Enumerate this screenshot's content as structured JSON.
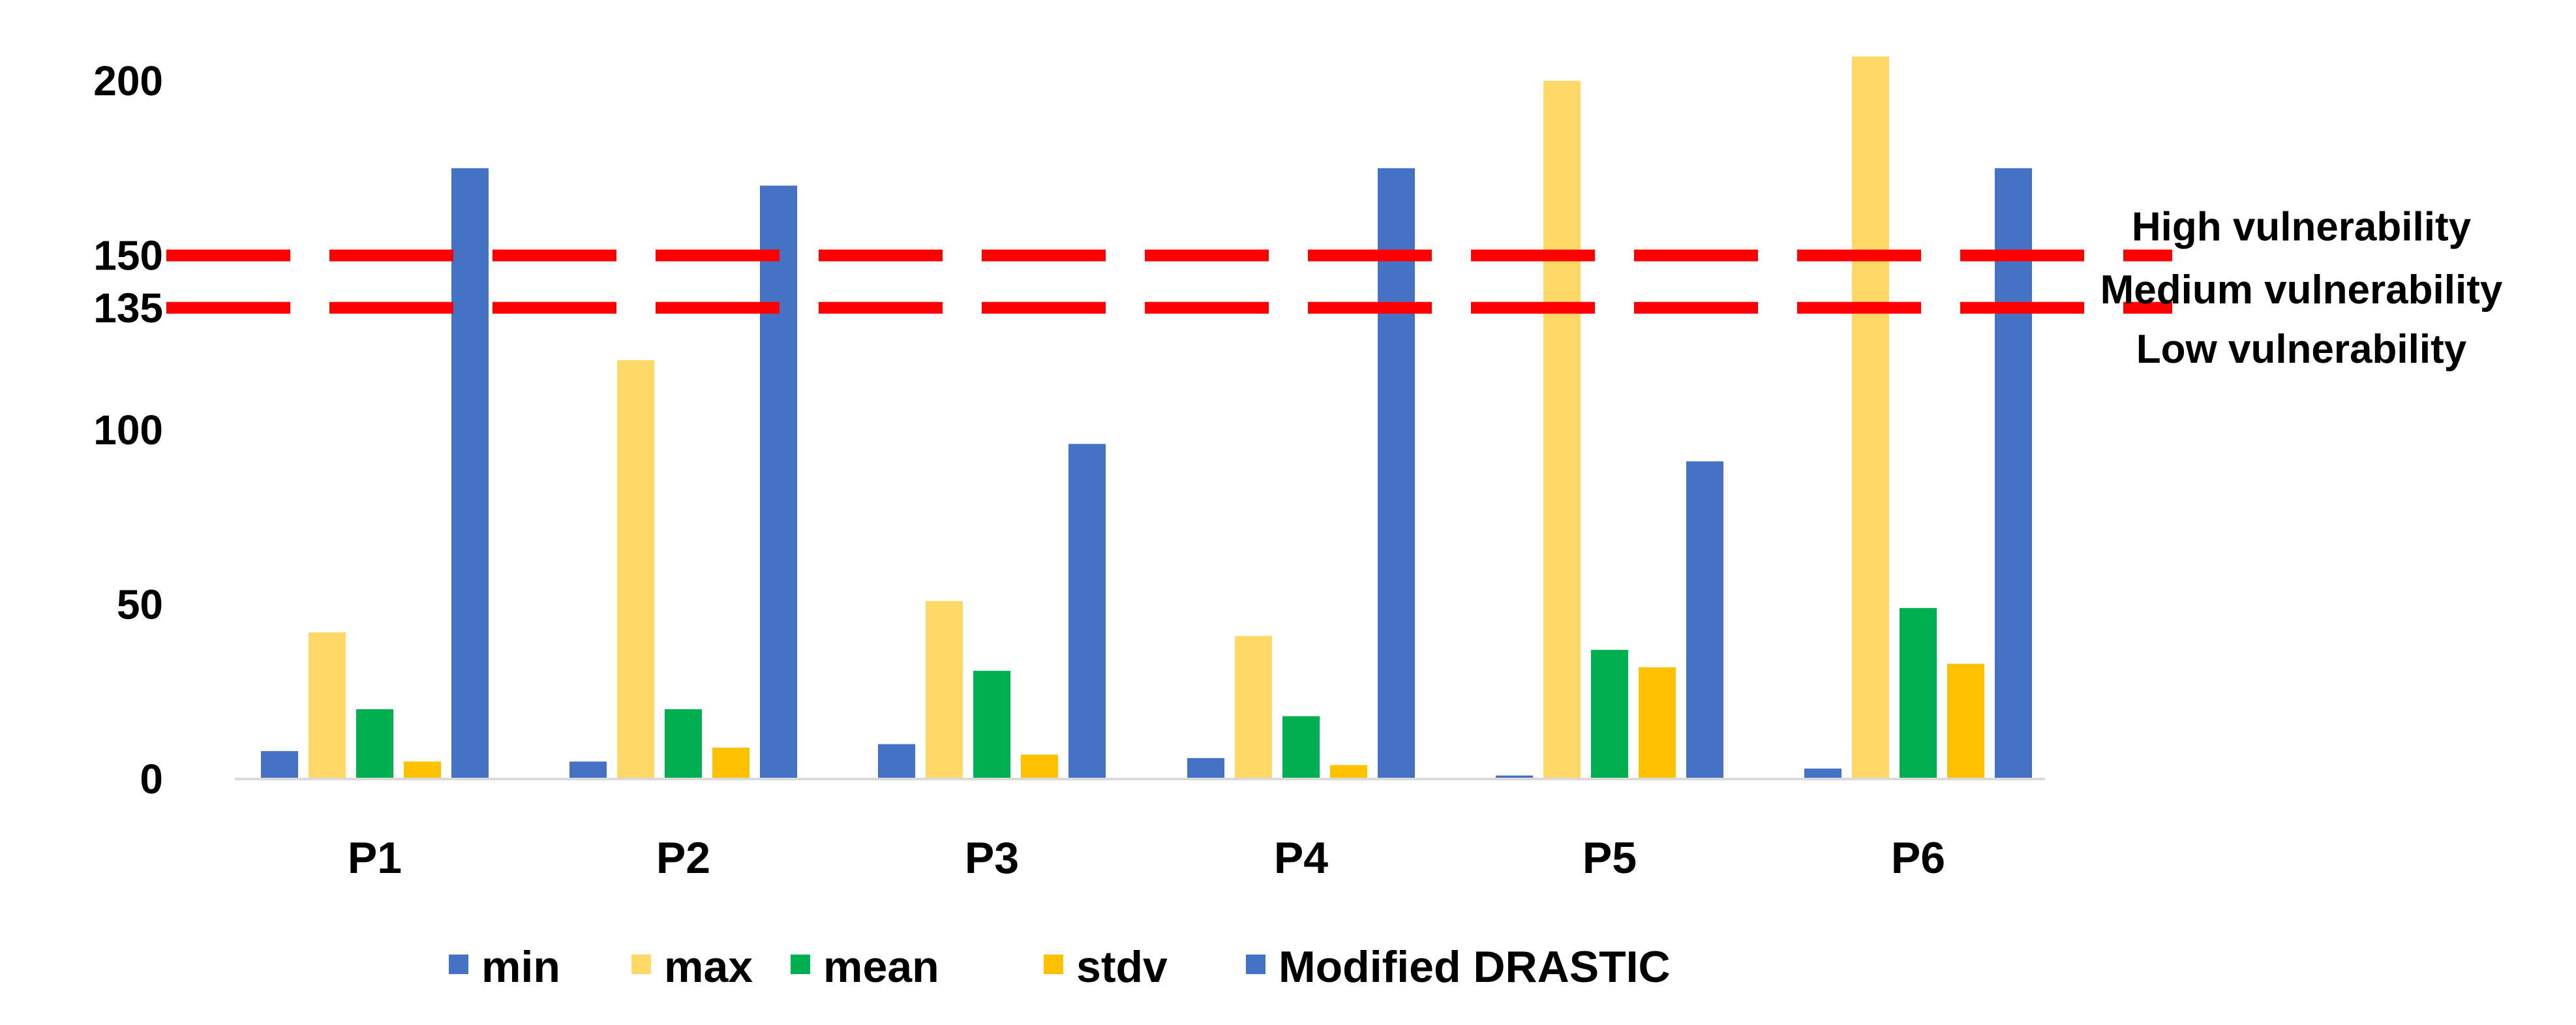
{
  "chart_data": {
    "type": "bar",
    "title": "",
    "xlabel": "",
    "ylabel": "",
    "categories": [
      "P1",
      "P2",
      "P3",
      "P4",
      "P5",
      "P6"
    ],
    "ylim": [
      0,
      210
    ],
    "yticks": [
      0,
      50,
      100,
      135,
      150,
      200
    ],
    "series": [
      {
        "name": "min",
        "color": "#4472C4",
        "values": [
          8,
          5,
          10,
          6,
          1,
          3
        ]
      },
      {
        "name": "max",
        "color": "#FFD966",
        "values": [
          42,
          120,
          51,
          41,
          200,
          207
        ]
      },
      {
        "name": "mean",
        "color": "#00B050",
        "values": [
          20,
          20,
          31,
          18,
          37,
          49
        ]
      },
      {
        "name": "stdv",
        "color": "#FFC000",
        "values": [
          5,
          9,
          7,
          4,
          32,
          33
        ]
      },
      {
        "name": "Modified DRASTIC",
        "color": "#4472C4",
        "values": [
          175,
          170,
          96,
          175,
          91,
          175
        ]
      }
    ],
    "thresholds": [
      {
        "value": 150,
        "color": "#FF0000",
        "style": "dashed"
      },
      {
        "value": 135,
        "color": "#FF0000",
        "style": "dashed"
      }
    ],
    "annotations": [
      {
        "text": "High vulnerability",
        "value": 158
      },
      {
        "text": "Medium vulnerability",
        "value": 140
      },
      {
        "text": "Low vulnerability",
        "value": 123
      }
    ],
    "grid": false,
    "legend_position": "bottom"
  }
}
